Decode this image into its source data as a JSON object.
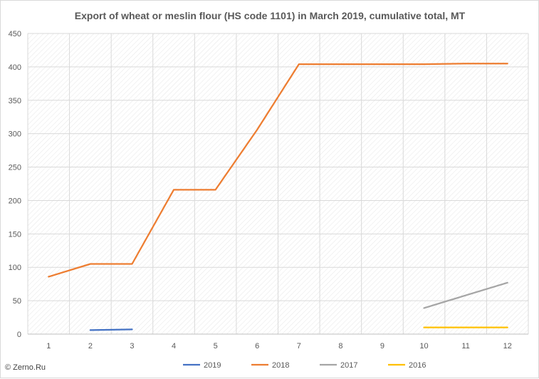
{
  "chart_data": {
    "type": "line",
    "title": "Export of wheat or meslin flour (HS code 1101) in March 2019, cumulative total, MT",
    "xlabel": "",
    "ylabel": "",
    "x": [
      1,
      2,
      3,
      4,
      5,
      6,
      7,
      8,
      9,
      10,
      11,
      12
    ],
    "ylim": [
      0,
      450
    ],
    "yticks": [
      0,
      50,
      100,
      150,
      200,
      250,
      300,
      350,
      400,
      450
    ],
    "grid": true,
    "legend_position": "bottom",
    "series": [
      {
        "name": "2019",
        "color": "#4472c4",
        "values": [
          null,
          6,
          7,
          null,
          null,
          null,
          null,
          null,
          null,
          null,
          null,
          null
        ]
      },
      {
        "name": "2018",
        "color": "#ed7d31",
        "values": [
          86,
          105,
          105,
          216,
          216,
          306,
          404,
          404,
          404,
          404,
          405,
          405
        ]
      },
      {
        "name": "2017",
        "color": "#a5a5a5",
        "values": [
          null,
          null,
          null,
          null,
          null,
          null,
          null,
          null,
          null,
          39,
          58,
          77
        ]
      },
      {
        "name": "2016",
        "color": "#ffc000",
        "values": [
          null,
          null,
          null,
          null,
          null,
          null,
          null,
          null,
          null,
          10,
          10,
          10
        ]
      }
    ]
  },
  "watermark": "© Zerno.Ru"
}
